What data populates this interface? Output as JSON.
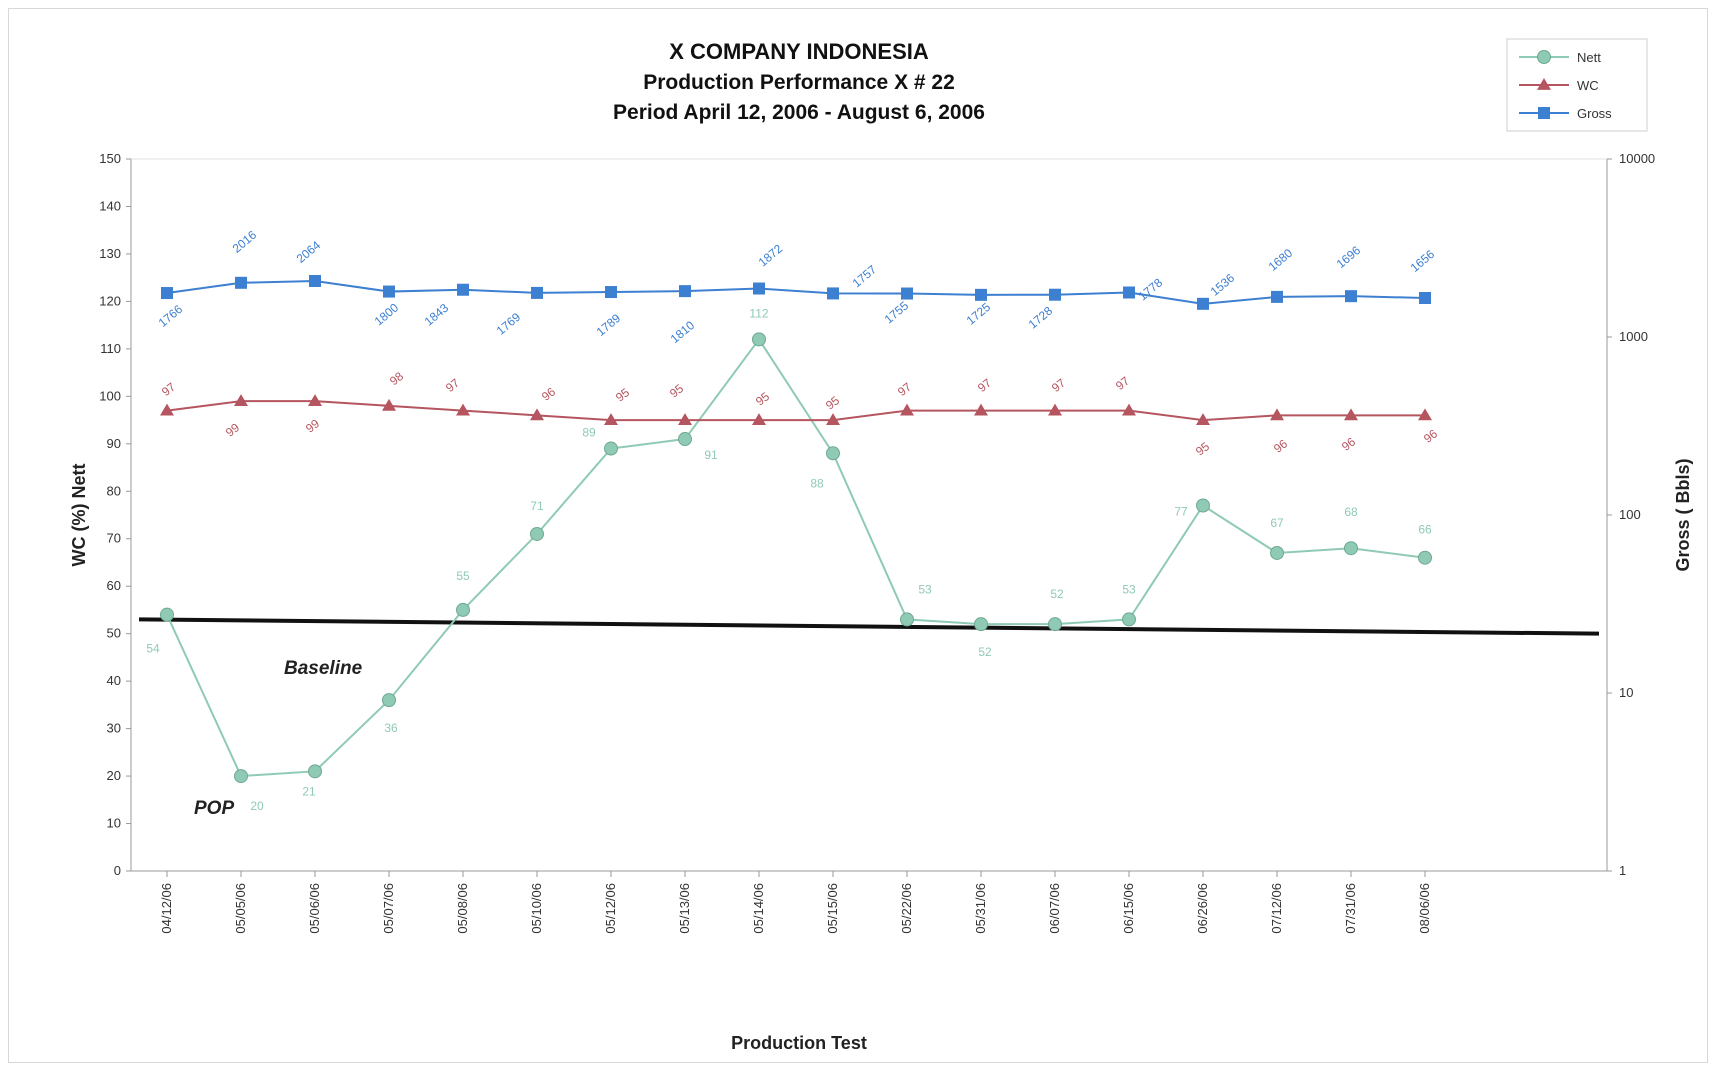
{
  "chart_data": {
    "type": "line",
    "title": [
      "X COMPANY INDONESIA",
      "Production Performance X # 22",
      "Period April 12, 2006 -  August 6, 2006"
    ],
    "xlabel": "Production Test",
    "ylabel_left": "WC (%) Nett",
    "ylabel_right": "Gross ( Bbls)",
    "left_axis": {
      "min": 0,
      "max": 150,
      "step": 10
    },
    "right_axis": {
      "scale": "log",
      "min": 1,
      "max": 10000,
      "ticks": [
        "1",
        "10",
        "100",
        "1000",
        "10000"
      ]
    },
    "categories": [
      "04/12/06",
      "05/05/06",
      "05/06/06",
      "05/07/06",
      "05/08/06",
      "05/10/06",
      "05/12/06",
      "05/13/06",
      "05/14/06",
      "05/15/06",
      "05/22/06",
      "05/31/06",
      "06/07/06",
      "06/15/06",
      "06/26/06",
      "07/12/06",
      "07/31/06",
      "08/06/06"
    ],
    "series": [
      {
        "name": "Nett",
        "axis": "left",
        "color": "#8fcab4",
        "marker": "circle",
        "values": [
          54,
          20,
          21,
          36,
          55,
          71,
          89,
          91,
          112,
          88,
          53,
          52,
          52,
          53,
          77,
          67,
          68,
          66
        ],
        "labels": [
          "54",
          "20",
          "21",
          "36",
          "55",
          "71",
          "89",
          "91",
          "112",
          "88",
          "53",
          "52",
          "52",
          "53",
          "77",
          "67",
          "68",
          "66"
        ]
      },
      {
        "name": "WC",
        "axis": "left",
        "color": "#b5555f",
        "marker": "triangle",
        "values": [
          97,
          99,
          99,
          98,
          97,
          96,
          95,
          95,
          95,
          95,
          97,
          97,
          97,
          97,
          95,
          96,
          96,
          96
        ],
        "labels": [
          "97",
          "99",
          "99",
          "98",
          "97",
          "96",
          "95",
          "95",
          "95",
          "95",
          "97",
          "97",
          "97",
          "97",
          "95",
          "96",
          "96",
          "96"
        ]
      },
      {
        "name": "Gross",
        "axis": "right",
        "color": "#3d7fd1",
        "marker": "square",
        "values": [
          1766,
          2016,
          2064,
          1800,
          1843,
          1769,
          1789,
          1810,
          1872,
          1757,
          1755,
          1725,
          1728,
          1778,
          1536,
          1680,
          1696,
          1656
        ],
        "labels": [
          "1766",
          "2016",
          "2064",
          "1800",
          "1843",
          "1769",
          "1789",
          "1810",
          "1872",
          "1757",
          "1755",
          "1725",
          "1728",
          "1778",
          "1536",
          "1680",
          "1696",
          "1656"
        ]
      }
    ],
    "baseline": {
      "label": "Baseline",
      "axis": "left",
      "start": 53,
      "end": 50,
      "color": "#111111"
    },
    "annotations": [
      {
        "text": "POP"
      }
    ],
    "legend": {
      "position": "top-right",
      "entries": [
        "Nett",
        "WC",
        "Gross"
      ]
    },
    "grid": false
  }
}
